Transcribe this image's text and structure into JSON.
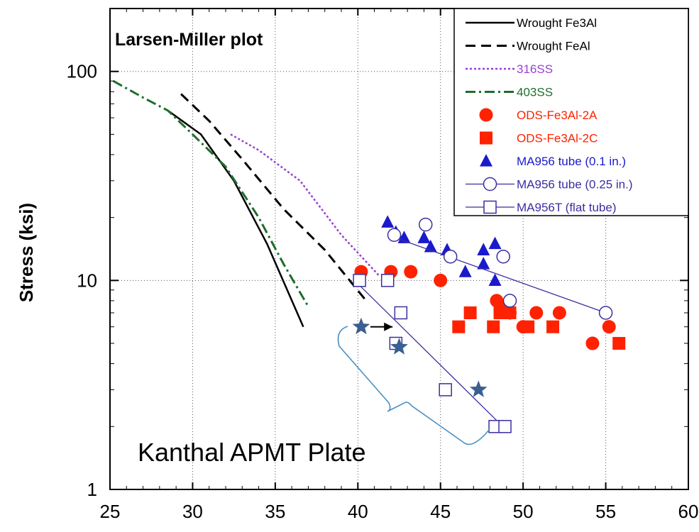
{
  "chart_data": {
    "type": "scatter",
    "title": "Larsen-Miller plot",
    "xlabel": "",
    "ylabel": "Stress (ksi)",
    "xlim": [
      25,
      60
    ],
    "ylim": [
      1,
      200
    ],
    "yscale": "log",
    "xticks": [
      "25",
      "30",
      "35",
      "40",
      "45",
      "50",
      "55",
      "60"
    ],
    "yticks": [
      "1",
      "10",
      "100"
    ],
    "grid": true,
    "legend_position": "top-right",
    "annotation": "Kanthal APMT Plate",
    "colors": {
      "red": "#ff2200",
      "blue": "#1a1acc",
      "purple": "#9a3fd0",
      "green": "#1f6e2a",
      "navy": "#3a2fa0",
      "star": "#3a5f90"
    },
    "series": [
      {
        "name": "Wrought Fe3Al",
        "kind": "line",
        "style": "solid",
        "color": "#000000",
        "points": [
          [
            28.5,
            65
          ],
          [
            30.5,
            50
          ],
          [
            32.5,
            30
          ],
          [
            34.5,
            15
          ],
          [
            36.7,
            6
          ]
        ]
      },
      {
        "name": "Wrought FeAl",
        "kind": "line",
        "style": "dash",
        "color": "#000000",
        "points": [
          [
            29.3,
            78
          ],
          [
            31,
            58
          ],
          [
            33,
            38
          ],
          [
            35.5,
            22
          ],
          [
            38,
            14
          ],
          [
            40.5,
            8
          ]
        ]
      },
      {
        "name": "316SS",
        "kind": "line",
        "style": "dot",
        "color": "#9a3fd0",
        "points": [
          [
            32.3,
            50
          ],
          [
            34,
            42
          ],
          [
            36.5,
            30
          ],
          [
            39,
            16.5
          ],
          [
            41.3,
            10.5
          ]
        ]
      },
      {
        "name": "403SS",
        "kind": "line",
        "style": "dashdot",
        "color": "#1f6e2a",
        "points": [
          [
            25.2,
            90
          ],
          [
            27,
            75
          ],
          [
            28.5,
            65
          ],
          [
            30,
            50
          ],
          [
            32,
            35
          ],
          [
            34,
            20
          ],
          [
            35.5,
            12
          ],
          [
            37,
            7.5
          ]
        ]
      },
      {
        "name": "ODS-Fe3Al-2A",
        "kind": "marker",
        "marker": "circle",
        "color": "#ff2200",
        "points": [
          [
            40.2,
            11
          ],
          [
            42,
            11
          ],
          [
            43.2,
            11
          ],
          [
            45,
            10
          ],
          [
            48.4,
            8
          ],
          [
            48.8,
            7.5
          ],
          [
            49.2,
            7
          ],
          [
            50,
            6
          ],
          [
            50.8,
            7
          ],
          [
            52.2,
            7
          ],
          [
            54.2,
            5
          ],
          [
            55.2,
            6
          ]
        ]
      },
      {
        "name": "ODS-Fe3Al-2C",
        "kind": "marker",
        "marker": "square",
        "color": "#ff2200",
        "points": [
          [
            46.1,
            6
          ],
          [
            46.8,
            7
          ],
          [
            48.2,
            6
          ],
          [
            48.6,
            7
          ],
          [
            49.2,
            7
          ],
          [
            50.3,
            6
          ],
          [
            51.8,
            6
          ],
          [
            55.8,
            5
          ]
        ]
      },
      {
        "name": "MA956 tube (0.1 in.)",
        "kind": "marker",
        "marker": "triangle",
        "color": "#1a1acc",
        "points": [
          [
            41.8,
            19
          ],
          [
            42.3,
            17
          ],
          [
            42.8,
            16
          ],
          [
            44,
            16
          ],
          [
            44.4,
            14.5
          ],
          [
            45.4,
            14
          ],
          [
            46.5,
            11
          ],
          [
            47.6,
            14
          ],
          [
            48.3,
            15
          ],
          [
            47.6,
            12
          ],
          [
            48.3,
            10
          ]
        ]
      },
      {
        "name": "MA956 tube (0.25 in.)",
        "kind": "line-marker",
        "marker": "circle-open",
        "color": "#3a2fa0",
        "points": [
          [
            42.2,
            16.5
          ],
          [
            44.1,
            18.5
          ],
          [
            45.6,
            13
          ],
          [
            48.8,
            13
          ],
          [
            49.2,
            8
          ],
          [
            55,
            7
          ]
        ],
        "fit_line": [
          [
            41.8,
            16.5
          ],
          [
            55,
            7
          ]
        ]
      },
      {
        "name": "MA956T (flat tube)",
        "kind": "line-marker",
        "marker": "square-open",
        "color": "#3a2fa0",
        "points": [
          [
            40.1,
            10
          ],
          [
            41.8,
            10
          ],
          [
            42.6,
            7
          ],
          [
            42.3,
            5
          ],
          [
            45.3,
            3
          ],
          [
            48.3,
            2
          ],
          [
            48.9,
            2
          ]
        ],
        "fit_line": [
          [
            39.8,
            10
          ],
          [
            48.5,
            2.1
          ]
        ]
      },
      {
        "name": "Kanthal APMT Plate",
        "kind": "marker",
        "marker": "star",
        "color": "#3a5f90",
        "points": [
          [
            40.2,
            6
          ],
          [
            42.5,
            4.8
          ],
          [
            47.3,
            3
          ]
        ]
      }
    ]
  }
}
